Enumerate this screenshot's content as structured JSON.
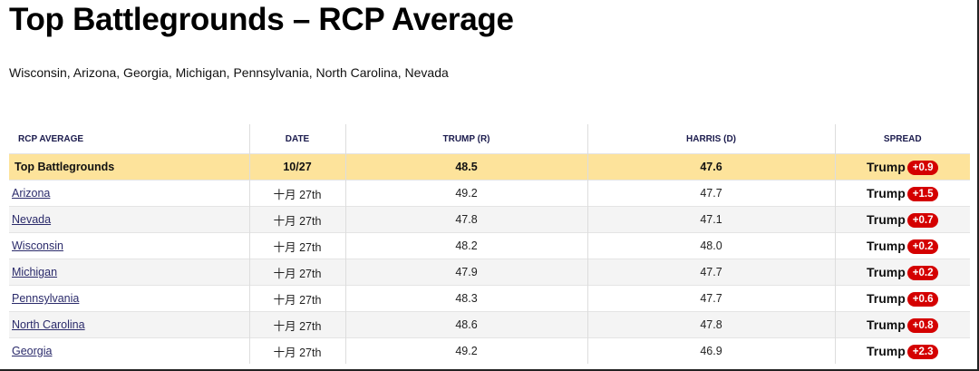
{
  "header": {
    "title": "Top Battlegrounds – RCP Average",
    "subtitle": "Wisconsin, Arizona, Georgia, Michigan, Pennsylvania, North Carolina, Nevada"
  },
  "table": {
    "columns": [
      "RCP AVERAGE",
      "DATE",
      "TRUMP (R)",
      "HARRIS (D)",
      "SPREAD"
    ],
    "rows": [
      {
        "name": "Top Battlegrounds",
        "date": "10/27",
        "trump": "48.5",
        "harris": "47.6",
        "leader": "Trump",
        "spread": "+0.9"
      },
      {
        "name": "Arizona",
        "date": "十月 27th",
        "trump": "49.2",
        "harris": "47.7",
        "leader": "Trump",
        "spread": "+1.5"
      },
      {
        "name": "Nevada",
        "date": "十月 27th",
        "trump": "47.8",
        "harris": "47.1",
        "leader": "Trump",
        "spread": "+0.7"
      },
      {
        "name": "Wisconsin",
        "date": "十月 27th",
        "trump": "48.2",
        "harris": "48.0",
        "leader": "Trump",
        "spread": "+0.2"
      },
      {
        "name": "Michigan",
        "date": "十月 27th",
        "trump": "47.9",
        "harris": "47.7",
        "leader": "Trump",
        "spread": "+0.2"
      },
      {
        "name": "Pennsylvania",
        "date": "十月 27th",
        "trump": "48.3",
        "harris": "47.7",
        "leader": "Trump",
        "spread": "+0.6"
      },
      {
        "name": "North Carolina",
        "date": "十月 27th",
        "trump": "48.6",
        "harris": "47.8",
        "leader": "Trump",
        "spread": "+0.8"
      },
      {
        "name": "Georgia",
        "date": "十月 27th",
        "trump": "49.2",
        "harris": "46.9",
        "leader": "Trump",
        "spread": "+2.3"
      }
    ]
  }
}
